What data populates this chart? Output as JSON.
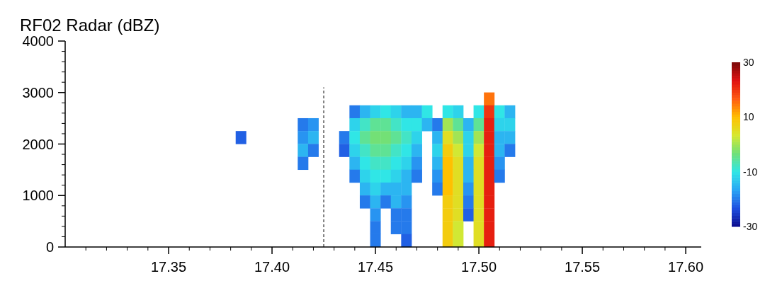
{
  "chart_data": {
    "type": "scatter",
    "title": "RF02 Radar (dBZ)",
    "marker": "square",
    "x": [
      17.505,
      17.44,
      17.445,
      17.45,
      17.455,
      17.46,
      17.465,
      17.47,
      17.475,
      17.485,
      17.49,
      17.5,
      17.505,
      17.51,
      17.515,
      17.415,
      17.42,
      17.44,
      17.445,
      17.45,
      17.455,
      17.46,
      17.465,
      17.47,
      17.475,
      17.48,
      17.485,
      17.49,
      17.495,
      17.5,
      17.505,
      17.51,
      17.515,
      17.385,
      17.415,
      17.42,
      17.435,
      17.44,
      17.445,
      17.45,
      17.455,
      17.46,
      17.465,
      17.47,
      17.48,
      17.485,
      17.49,
      17.495,
      17.5,
      17.505,
      17.51,
      17.515,
      17.415,
      17.42,
      17.435,
      17.44,
      17.445,
      17.45,
      17.455,
      17.46,
      17.465,
      17.47,
      17.48,
      17.485,
      17.49,
      17.495,
      17.5,
      17.505,
      17.51,
      17.515,
      17.415,
      17.44,
      17.445,
      17.45,
      17.455,
      17.46,
      17.465,
      17.47,
      17.48,
      17.485,
      17.49,
      17.495,
      17.5,
      17.505,
      17.51,
      17.44,
      17.445,
      17.45,
      17.455,
      17.46,
      17.465,
      17.47,
      17.48,
      17.485,
      17.49,
      17.495,
      17.5,
      17.505,
      17.51,
      17.445,
      17.45,
      17.455,
      17.46,
      17.465,
      17.48,
      17.485,
      17.49,
      17.495,
      17.5,
      17.505,
      17.445,
      17.45,
      17.455,
      17.46,
      17.465,
      17.485,
      17.49,
      17.495,
      17.5,
      17.505,
      17.45,
      17.46,
      17.465,
      17.485,
      17.49,
      17.495,
      17.5,
      17.505,
      17.45,
      17.46,
      17.465,
      17.485,
      17.49,
      17.5,
      17.505,
      17.45,
      17.465,
      17.485,
      17.49,
      17.5,
      17.505
    ],
    "values": [
      2875,
      2625,
      2625,
      2625,
      2625,
      2625,
      2625,
      2625,
      2625,
      2625,
      2625,
      2625,
      2625,
      2625,
      2625,
      2375,
      2375,
      2375,
      2375,
      2375,
      2375,
      2375,
      2375,
      2375,
      2375,
      2375,
      2375,
      2375,
      2375,
      2375,
      2375,
      2375,
      2375,
      2125,
      2125,
      2125,
      2125,
      2125,
      2125,
      2125,
      2125,
      2125,
      2125,
      2125,
      2125,
      2125,
      2125,
      2125,
      2125,
      2125,
      2125,
      2125,
      1875,
      1875,
      1875,
      1875,
      1875,
      1875,
      1875,
      1875,
      1875,
      1875,
      1875,
      1875,
      1875,
      1875,
      1875,
      1875,
      1875,
      1875,
      1625,
      1625,
      1625,
      1625,
      1625,
      1625,
      1625,
      1625,
      1625,
      1625,
      1625,
      1625,
      1625,
      1625,
      1625,
      1375,
      1375,
      1375,
      1375,
      1375,
      1375,
      1375,
      1375,
      1375,
      1375,
      1375,
      1375,
      1375,
      1375,
      1125,
      1125,
      1125,
      1125,
      1125,
      1125,
      1125,
      1125,
      1125,
      1125,
      1125,
      875,
      875,
      875,
      875,
      875,
      875,
      875,
      875,
      875,
      875,
      625,
      625,
      625,
      625,
      625,
      625,
      625,
      625,
      375,
      375,
      375,
      375,
      375,
      375,
      375,
      125,
      125,
      125,
      125,
      125,
      125
    ],
    "cvalues": [
      15,
      -20,
      -15,
      -12,
      -10,
      -12,
      -15,
      -15,
      -10,
      -10,
      -12,
      -10,
      20,
      -10,
      -15,
      -20,
      -18,
      -12,
      -8,
      -5,
      -5,
      -8,
      -10,
      -10,
      -15,
      -20,
      0,
      -5,
      -15,
      -5,
      22,
      -12,
      -12,
      -22,
      -18,
      -15,
      -20,
      -10,
      -5,
      -3,
      -3,
      -5,
      -8,
      -12,
      -15,
      5,
      0,
      -12,
      0,
      22,
      -15,
      -15,
      -15,
      -20,
      -22,
      -12,
      -8,
      -5,
      -5,
      -8,
      -10,
      -15,
      -12,
      8,
      3,
      -12,
      3,
      22,
      -15,
      -20,
      -20,
      -15,
      -10,
      -8,
      -8,
      -10,
      -12,
      -18,
      -15,
      10,
      5,
      -15,
      5,
      22,
      -18,
      -20,
      -12,
      -10,
      -10,
      -12,
      -15,
      -20,
      -18,
      10,
      5,
      -15,
      5,
      22,
      -20,
      -15,
      -12,
      -15,
      -15,
      -15,
      -20,
      10,
      5,
      -18,
      5,
      22,
      -20,
      -15,
      -20,
      -15,
      -18,
      8,
      5,
      -20,
      5,
      22,
      -18,
      -20,
      -20,
      8,
      5,
      -22,
      5,
      22,
      -20,
      -20,
      -20,
      8,
      3,
      5,
      22,
      -20,
      -22,
      8,
      3,
      5,
      22
    ],
    "xlim": [
      17.3,
      17.6075
    ],
    "xticks": [
      {
        "value": 17.31,
        "label": null
      },
      {
        "value": 17.32,
        "label": null
      },
      {
        "value": 17.33,
        "label": null
      },
      {
        "value": 17.34,
        "label": null
      },
      {
        "value": 17.35,
        "label": "17.35"
      },
      {
        "value": 17.36,
        "label": null
      },
      {
        "value": 17.37,
        "label": null
      },
      {
        "value": 17.38,
        "label": null
      },
      {
        "value": 17.39,
        "label": null
      },
      {
        "value": 17.4,
        "label": "17.40"
      },
      {
        "value": 17.41,
        "label": null
      },
      {
        "value": 17.42,
        "label": null
      },
      {
        "value": 17.43,
        "label": null
      },
      {
        "value": 17.44,
        "label": null
      },
      {
        "value": 17.45,
        "label": "17.45"
      },
      {
        "value": 17.46,
        "label": null
      },
      {
        "value": 17.47,
        "label": null
      },
      {
        "value": 17.48,
        "label": null
      },
      {
        "value": 17.49,
        "label": null
      },
      {
        "value": 17.5,
        "label": "17.50"
      },
      {
        "value": 17.51,
        "label": null
      },
      {
        "value": 17.52,
        "label": null
      },
      {
        "value": 17.53,
        "label": null
      },
      {
        "value": 17.54,
        "label": null
      },
      {
        "value": 17.55,
        "label": "17.55"
      },
      {
        "value": 17.56,
        "label": null
      },
      {
        "value": 17.57,
        "label": null
      },
      {
        "value": 17.58,
        "label": null
      },
      {
        "value": 17.59,
        "label": null
      },
      {
        "value": 17.6,
        "label": "17.60"
      }
    ],
    "ylim": [
      0,
      4000
    ],
    "yticks": [
      0,
      {
        "value": 200,
        "label": null
      },
      {
        "value": 400,
        "label": null
      },
      {
        "value": 600,
        "label": null
      },
      {
        "value": 800,
        "label": null
      },
      1000,
      {
        "value": 1200,
        "label": null
      },
      {
        "value": 1400,
        "label": null
      },
      {
        "value": 1600,
        "label": null
      },
      {
        "value": 1800,
        "label": null
      },
      2000,
      {
        "value": 2200,
        "label": null
      },
      {
        "value": 2400,
        "label": null
      },
      {
        "value": 2600,
        "label": null
      },
      {
        "value": 2800,
        "label": null
      },
      3000,
      {
        "value": 3200,
        "label": null
      },
      {
        "value": 3400,
        "label": null
      },
      {
        "value": 3600,
        "label": null
      },
      {
        "value": 3800,
        "label": null
      },
      4000
    ],
    "clim": [
      -30,
      30
    ],
    "cticks": [
      -30,
      -10,
      10,
      30
    ],
    "ref_lines": [
      {
        "axis": "x",
        "value": 17.425,
        "line_style": "dashed",
        "color": "#000000"
      }
    ]
  }
}
